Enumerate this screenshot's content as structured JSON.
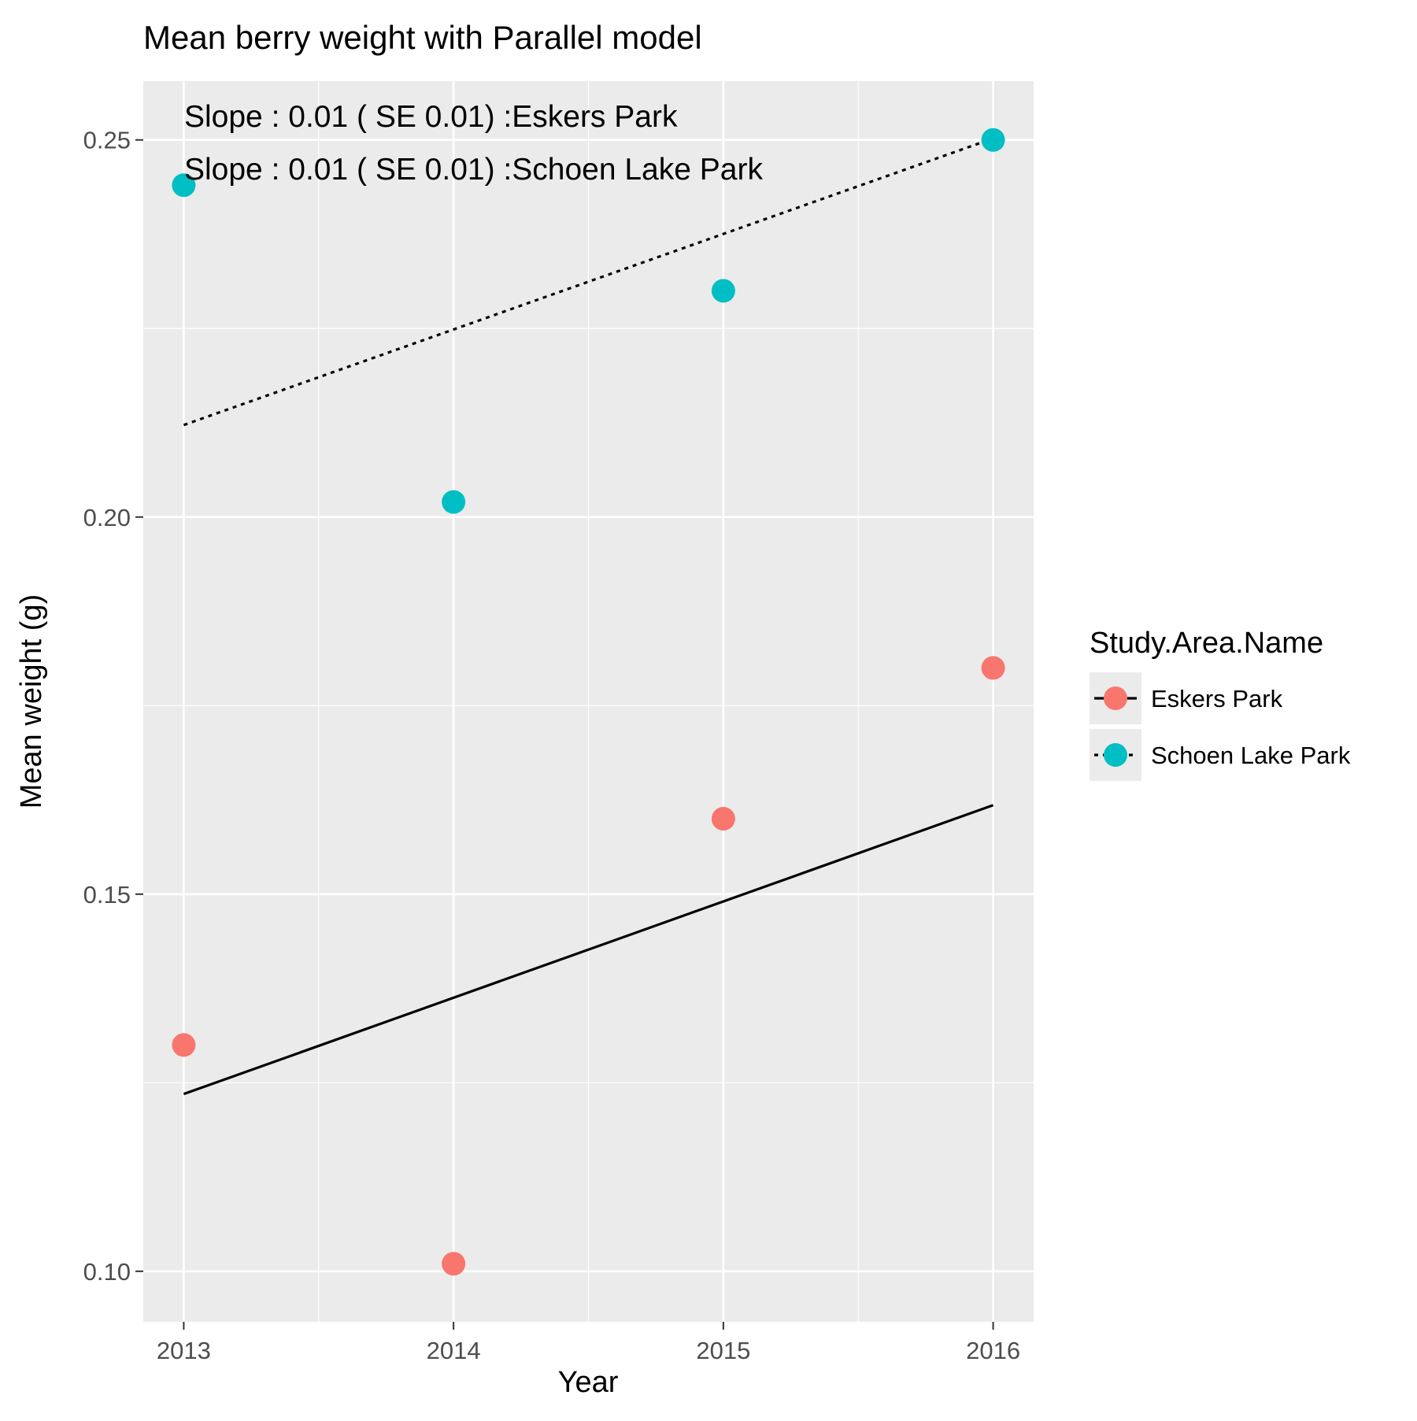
{
  "chart_data": {
    "type": "scatter",
    "title": "Mean berry weight with  Parallel model",
    "xlabel": "Year",
    "ylabel": "Mean weight (g)",
    "x_ticks": [
      "2013",
      "2014",
      "2015",
      "2016"
    ],
    "y_ticks": [
      "0.10",
      "0.15",
      "0.20",
      "0.25"
    ],
    "xlim": [
      2012.85,
      2016.15
    ],
    "ylim": [
      0.0933,
      0.2578
    ],
    "grid": true,
    "legend": {
      "title": "Study.Area.Name",
      "position": "right"
    },
    "annotations": [
      "Slope : 0.01 ( SE 0.01) :Eskers Park",
      "Slope : 0.01 ( SE 0.01) :Schoen Lake Park"
    ],
    "series": [
      {
        "name": "Eskers Park",
        "color": "#F8766D",
        "line_style": "solid",
        "x": [
          2013,
          2014,
          2015,
          2016
        ],
        "y": [
          0.13,
          0.101,
          0.16,
          0.18
        ],
        "fit": {
          "x": [
            2013,
            2016
          ],
          "y": [
            0.1235,
            0.1618
          ]
        }
      },
      {
        "name": "Schoen Lake Park",
        "color": "#00BFC4",
        "line_style": "dotted",
        "x": [
          2013,
          2014,
          2015,
          2016
        ],
        "y": [
          0.244,
          0.202,
          0.23,
          0.25
        ],
        "fit": {
          "x": [
            2013,
            2016
          ],
          "y": [
            0.2122,
            0.2502
          ]
        }
      }
    ]
  }
}
